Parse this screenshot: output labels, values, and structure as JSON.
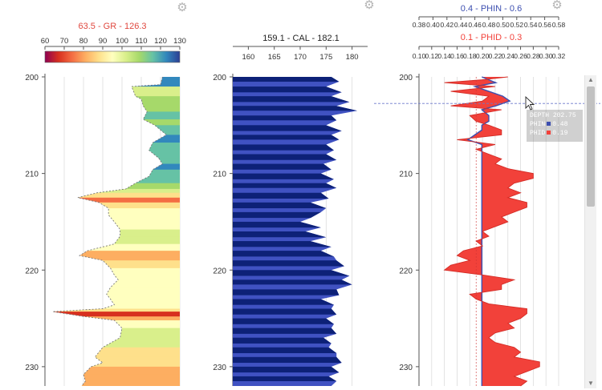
{
  "ui": {
    "gear_icon": "gear-icon",
    "cursor_icon": "mouse-pointer-icon",
    "tooltip": {
      "depth_label": "DEPTH",
      "depth_value": "202.75",
      "phin_label": "PHIN",
      "phin_value": "0.48",
      "phid_label": "PHID",
      "phid_value": "0.19"
    }
  },
  "chart_data": [
    {
      "type": "area",
      "track": "GR",
      "header": "63.5 - GR - 126.3",
      "header_color": "#e0483f",
      "colorbar_ticks": [
        60,
        70,
        80,
        90,
        100,
        110,
        120,
        130
      ],
      "colorbar_colors": [
        "#8e0152",
        "#d7301f",
        "#f46d43",
        "#fdae61",
        "#fee08b",
        "#ffffbf",
        "#d9ef8b",
        "#a6d96a",
        "#66c2a5",
        "#3288bd",
        "#2c3f93"
      ],
      "xlim": [
        60,
        130
      ],
      "ylim": [
        200,
        232
      ],
      "y_ticks": [
        200,
        210,
        220,
        230
      ],
      "depth": [
        200,
        200.8,
        201,
        202,
        202.3,
        203,
        203.6,
        204.4,
        205,
        206,
        206.8,
        207.6,
        208.4,
        209,
        209.6,
        210.3,
        211,
        211.6,
        212,
        212.5,
        213,
        213.6,
        214.3,
        215,
        215.8,
        216.5,
        217.3,
        218,
        218.5,
        219,
        219.8,
        220.5,
        221,
        221.8,
        222.5,
        223,
        223.6,
        224,
        224.3,
        224.8,
        225.2,
        226,
        227,
        228,
        229,
        229.6,
        230,
        230.8,
        231.5,
        232
      ],
      "values": [
        121,
        120,
        105,
        107,
        110,
        111,
        113,
        111,
        117,
        123,
        116,
        114,
        119,
        121,
        116,
        114,
        107,
        102,
        87,
        77,
        88,
        93,
        93,
        96,
        99,
        99,
        96,
        82,
        78,
        90,
        94,
        96,
        98,
        94,
        92,
        94,
        96,
        90,
        64,
        80,
        96,
        100,
        99,
        90,
        86,
        90,
        84,
        80,
        81,
        79
      ]
    },
    {
      "type": "area",
      "track": "CAL",
      "header": "159.1 - CAL - 182.1",
      "header_color": "#222222",
      "x_ticks": [
        160,
        165,
        170,
        175,
        180
      ],
      "xlim": [
        157,
        183
      ],
      "ylim": [
        200,
        232
      ],
      "y_ticks": [
        200,
        210,
        220,
        230
      ],
      "fill_colors": [
        "#0d2177",
        "#4052c2"
      ],
      "depth": [
        200,
        200.5,
        201,
        201.6,
        202,
        202.6,
        203,
        203.5,
        204,
        204.5,
        205,
        205.6,
        206,
        206.5,
        207,
        207.6,
        208,
        208.6,
        209,
        209.6,
        210,
        210.6,
        211,
        211.5,
        212,
        212.6,
        213,
        213.6,
        214,
        214.6,
        215,
        215.6,
        216,
        216.6,
        217,
        217.6,
        218,
        218.6,
        219,
        219.6,
        220,
        220.6,
        221,
        221.5,
        222,
        222.6,
        223,
        223.6,
        224,
        224.6,
        225,
        225.6,
        226,
        226.6,
        227,
        227.6,
        228,
        228.6,
        229,
        229.6,
        230,
        230.6,
        231,
        231.5,
        232
      ],
      "values": [
        176,
        177.5,
        175,
        178,
        176,
        179.5,
        177,
        181,
        176,
        177,
        175,
        178,
        176,
        177.5,
        175,
        176.5,
        175,
        177,
        174.5,
        176,
        174,
        176.5,
        175,
        177,
        174,
        175.5,
        172,
        175,
        174,
        172,
        170,
        174,
        171,
        175,
        172,
        176,
        174,
        176.5,
        177,
        178.5,
        176,
        179.5,
        178,
        180,
        177,
        177.5,
        174,
        176.5,
        176,
        177,
        175,
        176.5,
        176,
        177,
        174.5,
        176,
        175.5,
        177,
        177,
        178,
        176,
        177.5,
        175.5,
        177,
        176
      ]
    },
    {
      "type": "area",
      "track": "PHIN-PHID",
      "series": [
        {
          "name": "PHIN",
          "header": "0.4 - PHIN - 0.6",
          "color": "#3d4fb0",
          "xlim": [
            0.38,
            0.58
          ],
          "ticks": [
            0.38,
            0.4,
            0.42,
            0.44,
            0.46,
            0.48,
            0.5,
            0.52,
            0.54,
            0.56,
            0.58
          ]
        },
        {
          "name": "PHID",
          "header": "0.1 - PHID - 0.3",
          "color": "#f2413a",
          "xlim": [
            0.1,
            0.32
          ],
          "ticks": [
            0.1,
            0.12,
            0.14,
            0.16,
            0.18,
            0.2,
            0.22,
            0.24,
            0.26,
            0.28,
            0.3,
            0.32
          ]
        }
      ],
      "ylim": [
        200,
        232
      ],
      "y_ticks": [
        200,
        210,
        220,
        230
      ],
      "cursor_depth": 202.75,
      "depth": [
        200,
        200.3,
        200.6,
        201,
        201.5,
        202,
        202.5,
        203,
        203.4,
        204,
        204.6,
        205,
        205.5,
        206,
        206.5,
        207,
        207.5,
        208,
        208.5,
        209,
        209.5,
        210,
        210.5,
        211,
        211.5,
        212,
        212.5,
        213,
        213.5,
        214,
        214.5,
        215,
        215.5,
        216,
        216.5,
        217,
        217.5,
        218,
        218.5,
        219,
        219.5,
        220,
        220.5,
        221,
        221.5,
        222,
        222.5,
        223,
        223.5,
        224,
        224.5,
        225,
        225.5,
        226,
        226.5,
        227,
        227.5,
        228,
        228.5,
        229,
        229.5,
        230,
        230.5,
        231,
        231.5,
        232
      ],
      "phin_values": [
        0.47,
        0.48,
        0.49,
        0.46,
        0.48,
        0.5,
        0.51,
        0.49,
        0.47,
        0.48,
        0.48,
        0.47,
        0.47,
        0.46,
        0.45,
        0.47,
        0.47,
        0.47,
        0.47,
        0.47,
        0.47,
        0.47,
        0.47,
        0.47,
        0.47,
        0.47,
        0.47,
        0.47,
        0.47,
        0.47,
        0.47,
        0.47,
        0.47,
        0.47,
        0.47,
        0.47,
        0.47,
        0.47,
        0.47,
        0.47,
        0.47,
        0.47,
        0.47,
        0.47,
        0.47,
        0.47,
        0.47,
        0.47,
        0.47,
        0.47,
        0.47,
        0.47,
        0.47,
        0.47,
        0.47,
        0.47,
        0.47,
        0.47,
        0.47,
        0.47,
        0.47,
        0.47,
        0.47,
        0.47,
        0.47,
        0.47
      ],
      "phid_values": [
        0.24,
        0.2,
        0.14,
        0.22,
        0.15,
        0.21,
        0.2,
        0.15,
        0.23,
        0.18,
        0.19,
        0.21,
        0.23,
        0.23,
        0.16,
        0.22,
        0.19,
        0.21,
        0.23,
        0.22,
        0.24,
        0.28,
        0.28,
        0.25,
        0.24,
        0.26,
        0.24,
        0.27,
        0.27,
        0.25,
        0.23,
        0.24,
        0.22,
        0.2,
        0.21,
        0.19,
        0.2,
        0.17,
        0.16,
        0.18,
        0.15,
        0.14,
        0.2,
        0.25,
        0.23,
        0.23,
        0.18,
        0.19,
        0.21,
        0.27,
        0.27,
        0.26,
        0.24,
        0.25,
        0.22,
        0.21,
        0.22,
        0.25,
        0.26,
        0.25,
        0.29,
        0.29,
        0.27,
        0.25,
        0.27,
        0.26
      ]
    }
  ]
}
